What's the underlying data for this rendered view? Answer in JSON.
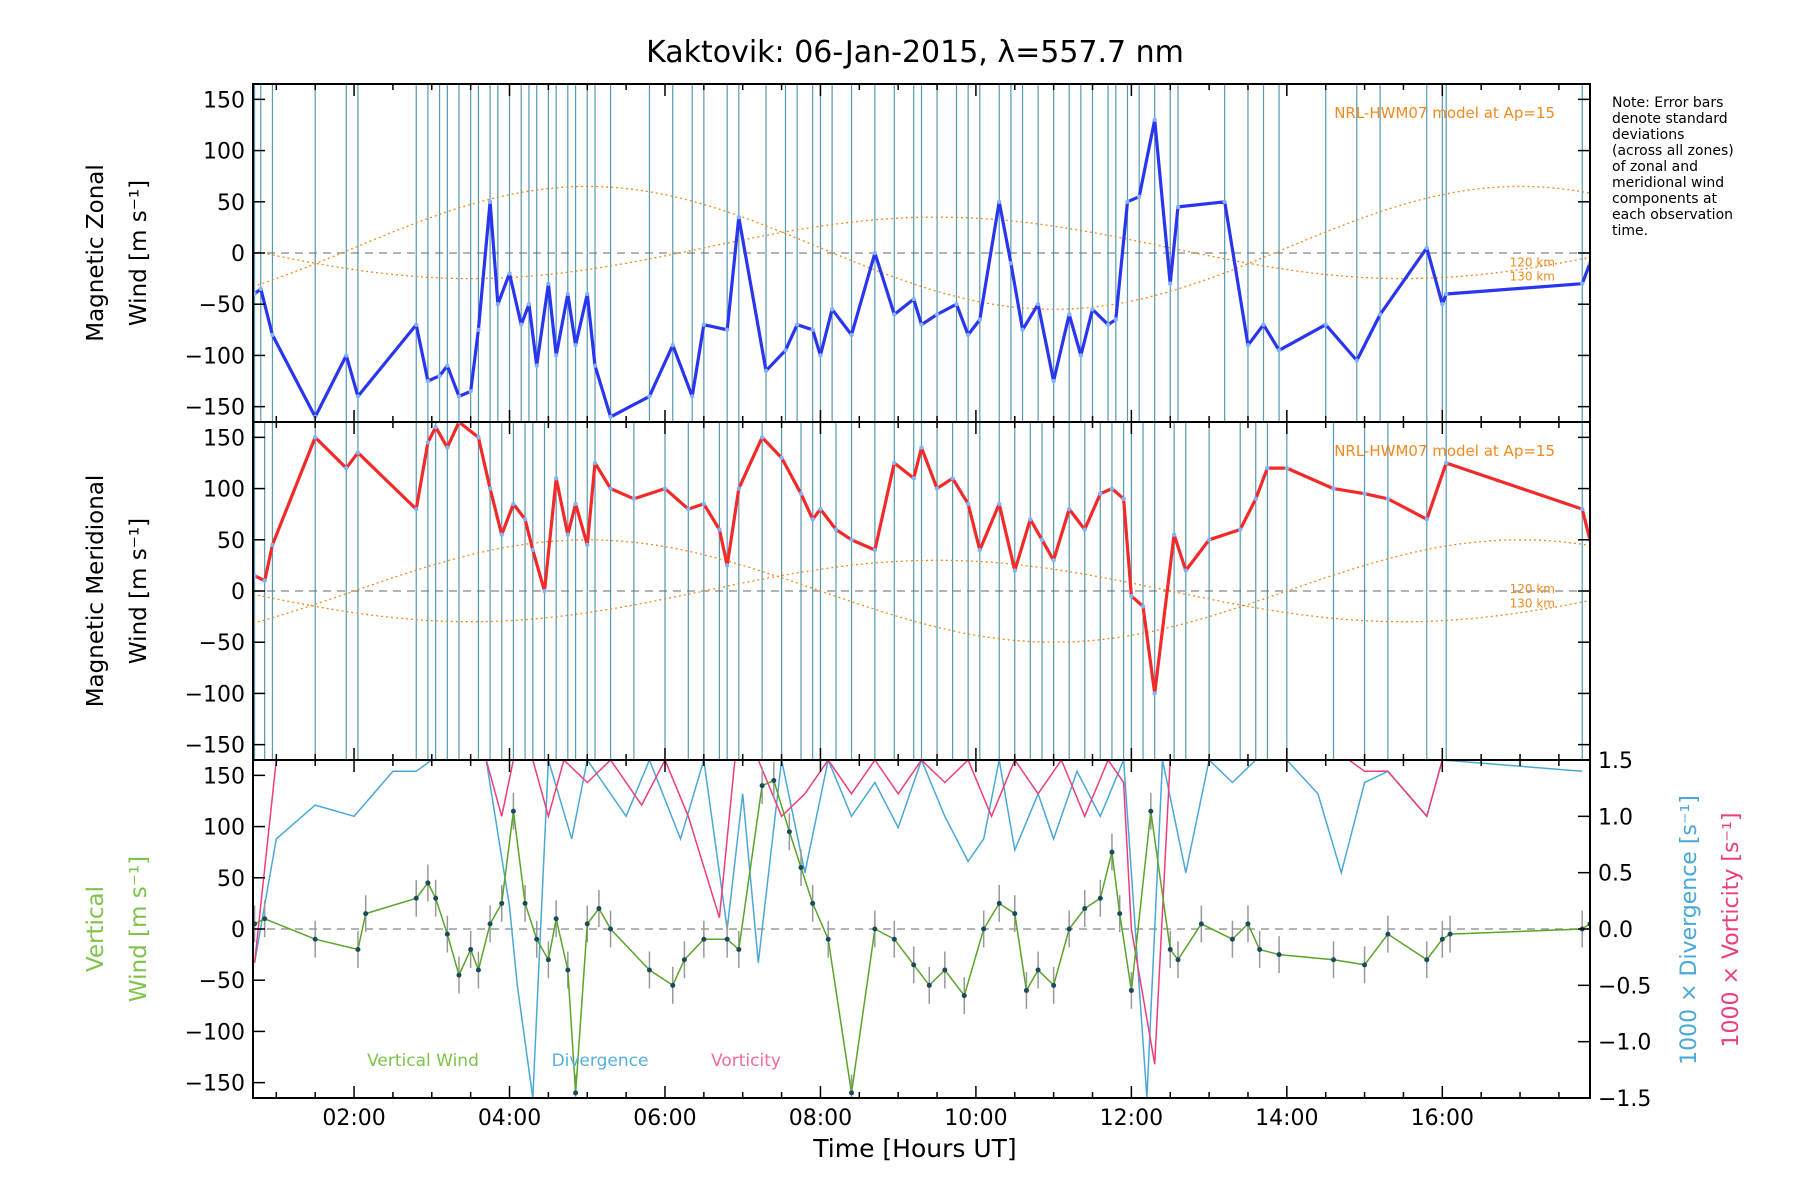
{
  "title": "Kaktovik: 06-Jan-2015, λ=557.7 nm",
  "note": [
    "Note: Error bars",
    "denote standard",
    "deviations",
    "(across all zones)",
    "of zonal and",
    "meridional wind",
    "components at",
    "each observation",
    "time."
  ],
  "colors": {
    "zonal": "#2a35ee",
    "meridional": "#f22a2a",
    "vertical": "#5aa42a",
    "divergence": "#4aa8d8",
    "vorticity": "#ee3c7e",
    "model": "#f08a1e",
    "zero_line": "#9a9a9a",
    "obs_lines": "#2e7fa0",
    "grey_label_vertical": "#7fc34a",
    "grey_label_div": "#55b0e0",
    "grey_label_vort": "#f06a9a"
  },
  "panels": {
    "zonal": {
      "ylabel_line1": "Magnetic Zonal",
      "ylabel_line2": "Wind [m s⁻¹]",
      "model_label": "NRL-HWM07 model at Ap=15",
      "alt_labels": [
        "120 km",
        "130 km"
      ]
    },
    "meridional": {
      "ylabel_line1": "Magnetic Meridional",
      "ylabel_line2": "Wind [m s⁻¹]",
      "model_label": "NRL-HWM07 model at Ap=15",
      "alt_labels": [
        "120 km",
        "130 km"
      ]
    },
    "vertical": {
      "ylabel_line1": "Vertical",
      "ylabel_line2": "Wind [m s⁻¹]",
      "right_label_div": "1000 × Divergence [s⁻¹]",
      "right_label_vort": "1000 × Vorticity [s⁻¹]",
      "legend": [
        "Vertical Wind",
        "Divergence",
        "Vorticity"
      ]
    }
  },
  "xaxis": {
    "label": "Time [Hours UT]",
    "ticks": [
      "02:00",
      "04:00",
      "06:00",
      "08:00",
      "10:00",
      "12:00",
      "14:00",
      "16:00"
    ]
  },
  "chart_data": [
    {
      "type": "line",
      "title": "Kaktovik: 06-Jan-2015, λ=557.7 nm",
      "xlabel": "",
      "ylabel": "Magnetic Zonal Wind [m s⁻¹]",
      "xlim": [
        0.7,
        17.9
      ],
      "ylim": [
        -165,
        165
      ],
      "yticks": [
        -150,
        -100,
        -50,
        0,
        50,
        100,
        150
      ],
      "series": [
        {
          "name": "Zonal Wind",
          "x": [
            0.72,
            0.8,
            0.95,
            1.5,
            1.9,
            2.05,
            2.8,
            2.95,
            3.1,
            3.2,
            3.35,
            3.5,
            3.6,
            3.75,
            3.85,
            4.0,
            4.15,
            4.25,
            4.35,
            4.5,
            4.6,
            4.75,
            4.85,
            5.0,
            5.1,
            5.3,
            5.8,
            6.1,
            6.35,
            6.5,
            6.8,
            6.95,
            7.3,
            7.55,
            7.7,
            7.9,
            8.0,
            8.15,
            8.4,
            8.7,
            8.95,
            9.2,
            9.3,
            9.5,
            9.75,
            9.9,
            10.05,
            10.3,
            10.45,
            10.6,
            10.8,
            11.0,
            11.2,
            11.35,
            11.5,
            11.7,
            11.8,
            11.95,
            12.1,
            12.3,
            12.5,
            12.6,
            13.2,
            13.5,
            13.7,
            13.9,
            14.5,
            14.9,
            15.2,
            15.8,
            16.0,
            16.05,
            17.8,
            17.9
          ],
          "y": [
            -40,
            -35,
            -80,
            -160,
            -100,
            -140,
            -70,
            -125,
            -120,
            -110,
            -140,
            -135,
            -75,
            50,
            -50,
            -20,
            -70,
            -50,
            -110,
            -30,
            -100,
            -40,
            -90,
            -40,
            -110,
            -160,
            -140,
            -90,
            -140,
            -70,
            -75,
            35,
            -115,
            -95,
            -70,
            -75,
            -100,
            -55,
            -80,
            0,
            -60,
            -45,
            -70,
            -60,
            -50,
            -80,
            -65,
            50,
            -10,
            -75,
            -50,
            -125,
            -60,
            -100,
            -55,
            -70,
            -65,
            50,
            55,
            130,
            -30,
            45,
            50,
            -90,
            -70,
            -95,
            -70,
            -105,
            -60,
            5,
            -50,
            -40,
            -30,
            -10
          ]
        }
      ],
      "reference_lines": [
        {
          "y": 0,
          "style": "dashed"
        }
      ]
    },
    {
      "type": "line",
      "title": "",
      "xlabel": "",
      "ylabel": "Magnetic Meridional Wind [m s⁻¹]",
      "xlim": [
        0.7,
        17.9
      ],
      "ylim": [
        -165,
        165
      ],
      "yticks": [
        -150,
        -100,
        -50,
        0,
        50,
        100,
        150
      ],
      "series": [
        {
          "name": "Meridional Wind",
          "x": [
            0.72,
            0.85,
            0.95,
            1.5,
            1.9,
            2.05,
            2.8,
            2.95,
            3.05,
            3.2,
            3.35,
            3.6,
            3.75,
            3.9,
            4.05,
            4.2,
            4.3,
            4.45,
            4.6,
            4.75,
            4.85,
            5.0,
            5.1,
            5.3,
            5.6,
            6.0,
            6.3,
            6.5,
            6.7,
            6.8,
            6.95,
            7.25,
            7.5,
            7.75,
            7.9,
            8.0,
            8.2,
            8.4,
            8.7,
            8.95,
            9.2,
            9.3,
            9.5,
            9.7,
            9.9,
            10.05,
            10.3,
            10.5,
            10.7,
            10.85,
            11.0,
            11.2,
            11.4,
            11.6,
            11.75,
            11.9,
            12.0,
            12.15,
            12.3,
            12.55,
            12.7,
            13.0,
            13.4,
            13.6,
            13.75,
            14.0,
            14.6,
            15.0,
            15.3,
            15.8,
            16.05,
            17.8,
            17.9
          ],
          "y": [
            15,
            10,
            45,
            150,
            120,
            135,
            80,
            145,
            160,
            140,
            165,
            150,
            100,
            55,
            85,
            70,
            40,
            0,
            110,
            55,
            85,
            45,
            125,
            100,
            90,
            100,
            80,
            85,
            60,
            25,
            100,
            150,
            130,
            95,
            70,
            80,
            60,
            50,
            40,
            125,
            110,
            140,
            100,
            110,
            85,
            40,
            85,
            20,
            70,
            50,
            30,
            80,
            60,
            95,
            100,
            90,
            -5,
            -15,
            -100,
            55,
            20,
            50,
            60,
            90,
            120,
            120,
            100,
            95,
            90,
            70,
            125,
            80,
            50
          ]
        }
      ],
      "reference_lines": [
        {
          "y": 0,
          "style": "dashed"
        }
      ]
    },
    {
      "type": "line",
      "title": "",
      "xlabel": "Time [Hours UT]",
      "ylabel": "Vertical Wind [m s⁻¹]",
      "xlim": [
        0.7,
        17.9
      ],
      "ylim": [
        -165,
        165
      ],
      "yticks": [
        -150,
        -100,
        -50,
        0,
        50,
        100,
        150
      ],
      "y2label": "1000 × Divergence [s⁻¹] / 1000 × Vorticity [s⁻¹]",
      "y2lim": [
        -1.5,
        1.5
      ],
      "y2ticks": [
        -1.5,
        -1.0,
        -0.5,
        0.0,
        0.5,
        1.0,
        1.5
      ],
      "series": [
        {
          "name": "Vertical Wind",
          "x": [
            0.72,
            0.85,
            1.5,
            2.05,
            2.15,
            2.8,
            2.95,
            3.05,
            3.2,
            3.35,
            3.5,
            3.6,
            3.75,
            3.9,
            4.05,
            4.2,
            4.35,
            4.5,
            4.6,
            4.75,
            4.85,
            5.0,
            5.15,
            5.3,
            5.8,
            6.1,
            6.25,
            6.5,
            6.8,
            6.95,
            7.25,
            7.4,
            7.6,
            7.75,
            7.9,
            8.1,
            8.4,
            8.7,
            8.95,
            9.2,
            9.4,
            9.6,
            9.85,
            10.1,
            10.3,
            10.5,
            10.65,
            10.8,
            11.0,
            11.2,
            11.4,
            11.6,
            11.75,
            11.85,
            12.0,
            12.25,
            12.5,
            12.6,
            12.9,
            13.3,
            13.5,
            13.65,
            13.9,
            14.6,
            15.0,
            15.3,
            15.8,
            16.0,
            16.1,
            17.8,
            17.9
          ],
          "y": [
            5,
            10,
            -10,
            -20,
            15,
            30,
            45,
            30,
            -5,
            -45,
            -20,
            -40,
            5,
            25,
            115,
            25,
            -10,
            -30,
            10,
            -40,
            -160,
            5,
            20,
            0,
            -40,
            -55,
            -30,
            -10,
            -10,
            -20,
            140,
            145,
            95,
            60,
            25,
            -10,
            -160,
            0,
            -10,
            -35,
            -55,
            -40,
            -65,
            0,
            25,
            15,
            -60,
            -40,
            -55,
            0,
            20,
            30,
            75,
            15,
            -60,
            115,
            -20,
            -30,
            5,
            -10,
            5,
            -20,
            -25,
            -30,
            -35,
            -5,
            -30,
            -10,
            -5,
            0,
            5
          ]
        },
        {
          "name": "Divergence",
          "x": [
            0.72,
            1.0,
            1.5,
            2.0,
            2.5,
            2.8,
            3.0,
            3.6,
            3.7,
            4.0,
            4.1,
            4.3,
            4.5,
            4.8,
            5.0,
            5.5,
            5.8,
            6.2,
            6.5,
            6.8,
            7.0,
            7.2,
            7.5,
            7.8,
            8.1,
            8.4,
            8.7,
            9.0,
            9.3,
            9.6,
            9.9,
            10.1,
            10.3,
            10.5,
            10.8,
            11.0,
            11.3,
            11.6,
            11.9,
            12.2,
            12.4,
            12.7,
            13.0,
            13.3,
            13.6,
            14.0,
            14.4,
            14.7,
            15.0,
            15.3,
            15.8,
            16.0,
            17.8
          ],
          "y": [
            -0.3,
            0.8,
            1.1,
            1.0,
            1.4,
            1.4,
            1.5,
            1.5,
            1.5,
            0.2,
            -0.5,
            -1.5,
            1.5,
            0.8,
            1.5,
            1.0,
            1.5,
            0.8,
            1.5,
            0.0,
            1.2,
            -0.3,
            1.5,
            0.5,
            1.5,
            1.0,
            1.3,
            0.9,
            1.5,
            1.0,
            0.6,
            0.8,
            1.5,
            0.7,
            1.2,
            0.8,
            1.4,
            1.0,
            1.5,
            -1.5,
            1.5,
            0.5,
            1.5,
            1.3,
            1.5,
            1.5,
            1.2,
            0.5,
            1.3,
            1.4,
            1.0,
            1.5,
            1.4
          ]
        },
        {
          "name": "Vorticity",
          "x": [
            0.72,
            1.0,
            1.5,
            2.0,
            2.5,
            3.0,
            3.5,
            3.7,
            3.9,
            4.05,
            4.3,
            4.5,
            4.7,
            5.0,
            5.3,
            5.7,
            6.0,
            6.3,
            6.7,
            6.9,
            7.2,
            7.5,
            7.8,
            8.1,
            8.4,
            8.7,
            9.0,
            9.3,
            9.6,
            9.9,
            10.2,
            10.5,
            10.8,
            11.1,
            11.4,
            11.7,
            11.9,
            12.0,
            12.3,
            12.5,
            12.7,
            13.0,
            13.3,
            13.6,
            14.0,
            14.4,
            14.8,
            15.0,
            15.3,
            15.8,
            16.0,
            17.8
          ],
          "y": [
            -0.3,
            1.5,
            1.5,
            1.5,
            1.5,
            1.5,
            1.5,
            1.5,
            1.0,
            1.5,
            1.5,
            1.0,
            1.5,
            1.3,
            1.5,
            1.1,
            1.5,
            1.0,
            0.1,
            1.5,
            1.5,
            1.0,
            1.2,
            1.5,
            1.2,
            1.5,
            1.2,
            1.5,
            1.3,
            1.5,
            1.0,
            1.5,
            1.2,
            1.5,
            1.0,
            1.5,
            1.3,
            0.0,
            -1.2,
            1.5,
            1.5,
            1.5,
            1.5,
            1.5,
            1.5,
            1.5,
            1.5,
            1.4,
            1.4,
            1.0,
            1.5,
            1.5
          ]
        }
      ],
      "reference_lines": [
        {
          "y": 0,
          "style": "dashed"
        }
      ]
    }
  ]
}
